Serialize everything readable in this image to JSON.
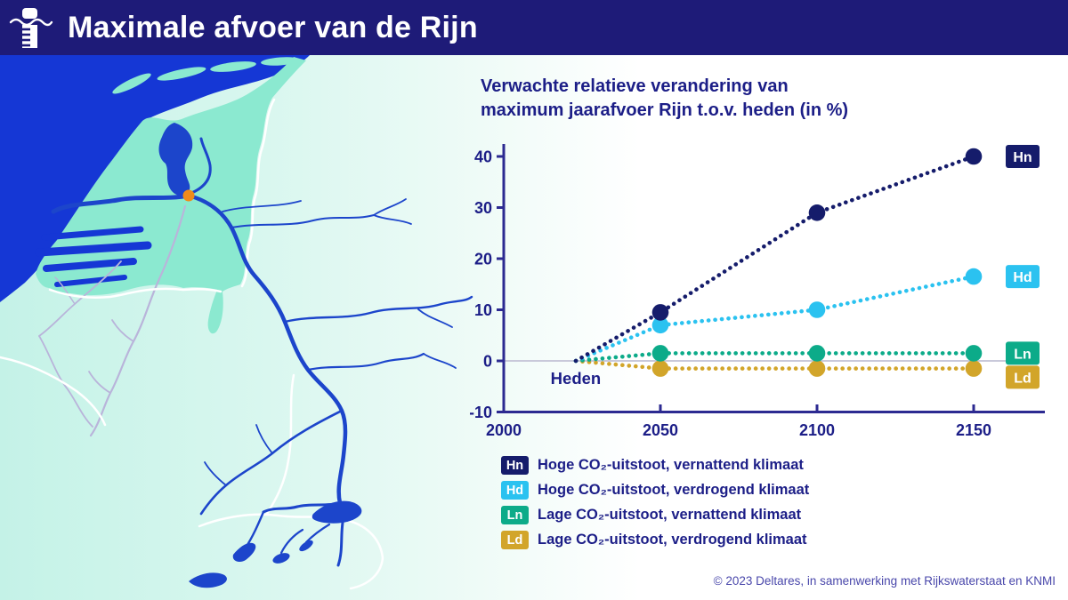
{
  "header": {
    "title": "Maximale afvoer van de Rijn"
  },
  "chart": {
    "title_lines": [
      "Verwachte relatieve verandering van",
      "maximum jaarafvoer Rijn t.o.v. heden (in %)"
    ]
  },
  "chart_data": {
    "type": "scatter",
    "title": "Verwachte relatieve verandering van maximum jaarafvoer Rijn t.o.v. heden (in %)",
    "x": [
      2050,
      2100,
      2150
    ],
    "xticks": [
      2000,
      2050,
      2100,
      2150
    ],
    "yticks": [
      -10,
      0,
      10,
      20,
      30,
      40
    ],
    "xlim": [
      2000,
      2170
    ],
    "ylim": [
      -10,
      43
    ],
    "origin": {
      "x": 2023,
      "y": 0,
      "label": "Heden"
    },
    "line_style": "dotted",
    "grid": false,
    "legend_position": "below",
    "series": [
      {
        "id": "Hn",
        "label": "Hoge CO₂-uitstoot, vernattend klimaat",
        "color": "#151c6b",
        "values": [
          9.5,
          29,
          40
        ]
      },
      {
        "id": "Hd",
        "label": "Hoge CO₂-uitstoot, verdrogend klimaat",
        "color": "#2bc2f0",
        "values": [
          7,
          10,
          16.5
        ]
      },
      {
        "id": "Ln",
        "label": "Lage CO₂-uitstoot, vernattend klimaat",
        "color": "#0cab89",
        "values": [
          1.5,
          1.5,
          1.5
        ]
      },
      {
        "id": "Ld",
        "label": "Lage CO₂-uitstoot, verdrogend klimaat",
        "color": "#d2a52a",
        "values": [
          -1.5,
          -1.5,
          -1.5
        ]
      }
    ]
  },
  "footer": {
    "credit": "© 2023 Deltares, in samenwerking met Rijkswaterstaat en KNMI"
  },
  "colors": {
    "header_bg": "#1e1b78",
    "chart_text": "#1c1e87",
    "axis": "#2c2a91",
    "zero_line": "#c9c9da",
    "sea": "#1537d5",
    "river": "#1c45cb",
    "netherlands_land": "#8be9d0",
    "marker_orange": "#f08a19",
    "credit_text": "#4a48ab"
  }
}
